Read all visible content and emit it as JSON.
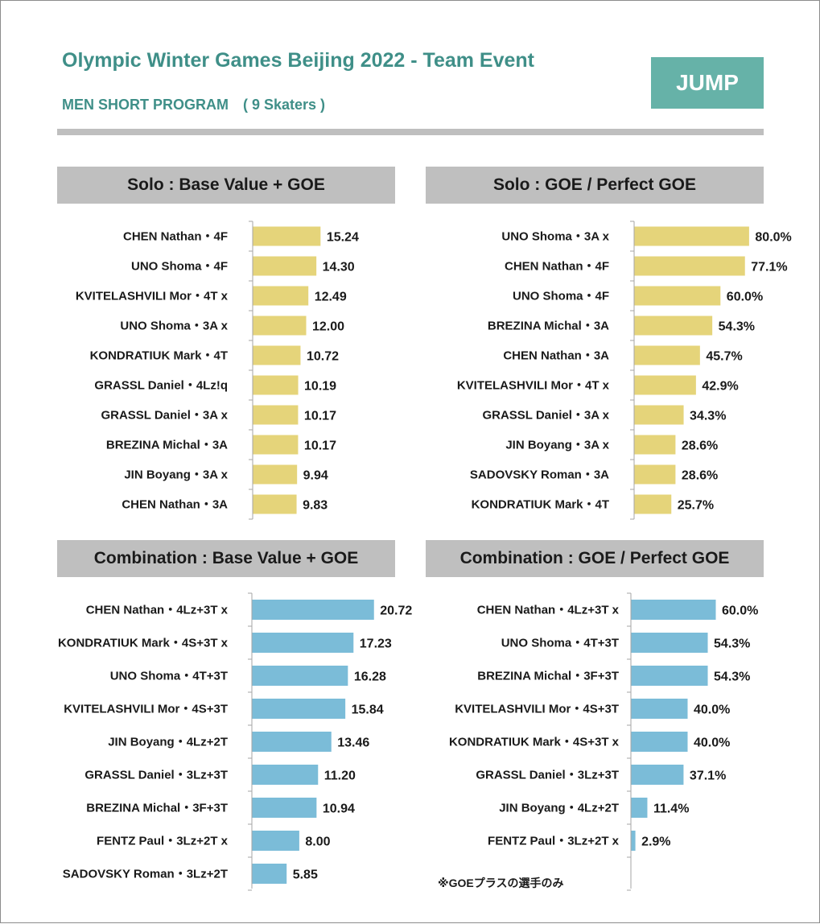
{
  "header": {
    "title": "Olympic Winter Games Beijing 2022 - Team Event",
    "subtitle": "MEN SHORT PROGRAM　( 9 Skaters )",
    "badge": "JUMP"
  },
  "note": "※GOEプラスの選手のみ",
  "colors": {
    "title": "#3f8f88",
    "badge": "#66b2a8",
    "solo_bar": "#e5d47a",
    "combo_bar": "#7bbcd8",
    "header_bg": "#bfbfbf"
  },
  "chart_data": [
    {
      "type": "bar",
      "orientation": "horizontal",
      "title": "Solo : Base Value + GOE",
      "categories": [
        "CHEN Nathan・4F",
        "UNO Shoma・4F",
        "KVITELASHVILI Mor・4T x",
        "UNO Shoma・3A x",
        "KONDRATIUK Mark・4T",
        "GRASSL Daniel・4Lz!q",
        "GRASSL Daniel・3A x",
        "BREZINA Michal・3A",
        "JIN Boyang・3A x",
        "CHEN Nathan・3A"
      ],
      "values": [
        15.24,
        14.3,
        12.49,
        12.0,
        10.72,
        10.19,
        10.17,
        10.17,
        9.94,
        9.83
      ],
      "value_labels": [
        "15.24",
        "14.30",
        "12.49",
        "12.00",
        "10.72",
        "10.19",
        "10.17",
        "10.17",
        "9.94",
        "9.83"
      ],
      "xlim": [
        0,
        24
      ],
      "bar_color": "#e5d47a"
    },
    {
      "type": "bar",
      "orientation": "horizontal",
      "title": "Solo : GOE / Perfect GOE",
      "categories": [
        "UNO Shoma・3A x",
        "CHEN Nathan・4F",
        "UNO Shoma・4F",
        "BREZINA Michal・3A",
        "CHEN Nathan・3A",
        "KVITELASHVILI Mor・4T x",
        "GRASSL Daniel・3A x",
        "JIN Boyang・3A x",
        "SADOVSKY Roman・3A",
        "KONDRATIUK Mark・4T"
      ],
      "values": [
        80.0,
        77.1,
        60.0,
        54.3,
        45.7,
        42.9,
        34.3,
        28.6,
        28.6,
        25.7
      ],
      "value_labels": [
        "80.0%",
        "77.1%",
        "60.0%",
        "54.3%",
        "45.7%",
        "42.9%",
        "34.3%",
        "28.6%",
        "28.6%",
        "25.7%"
      ],
      "xlim": [
        0,
        117
      ],
      "bar_color": "#e5d47a"
    },
    {
      "type": "bar",
      "orientation": "horizontal",
      "title": "Combination : Base Value + GOE",
      "categories": [
        "CHEN Nathan・4Lz+3T x",
        "KONDRATIUK Mark・4S+3T x",
        "UNO Shoma・4T+3T",
        "KVITELASHVILI Mor・4S+3T",
        "JIN Boyang・4Lz+2T",
        "GRASSL Daniel・3Lz+3T",
        "BREZINA Michal・3F+3T",
        "FENTZ Paul・3Lz+2T x",
        "SADOVSKY Roman・3Lz+2T"
      ],
      "values": [
        20.72,
        17.23,
        16.28,
        15.84,
        13.46,
        11.2,
        10.94,
        8.0,
        5.85
      ],
      "value_labels": [
        "20.72",
        "17.23",
        "16.28",
        "15.84",
        "13.46",
        "11.20",
        "10.94",
        "8.00",
        "5.85"
      ],
      "xlim": [
        0,
        31.5
      ],
      "bar_color": "#7bbcd8"
    },
    {
      "type": "bar",
      "orientation": "horizontal",
      "title": "Combination : GOE / Perfect GOE",
      "categories": [
        "CHEN Nathan・4Lz+3T x",
        "UNO Shoma・4T+3T",
        "BREZINA Michal・3F+3T",
        "KVITELASHVILI Mor・4S+3T",
        "KONDRATIUK Mark・4S+3T x",
        "GRASSL Daniel・3Lz+3T",
        "JIN Boyang・4Lz+2T",
        "FENTZ Paul・3Lz+2T x"
      ],
      "values": [
        60.0,
        54.3,
        54.3,
        40.0,
        40.0,
        37.1,
        11.4,
        2.9
      ],
      "value_labels": [
        "60.0%",
        "54.3%",
        "54.3%",
        "40.0%",
        "40.0%",
        "37.1%",
        "11.4%",
        "2.9%"
      ],
      "xlim": [
        0,
        94
      ],
      "bar_color": "#7bbcd8"
    }
  ]
}
